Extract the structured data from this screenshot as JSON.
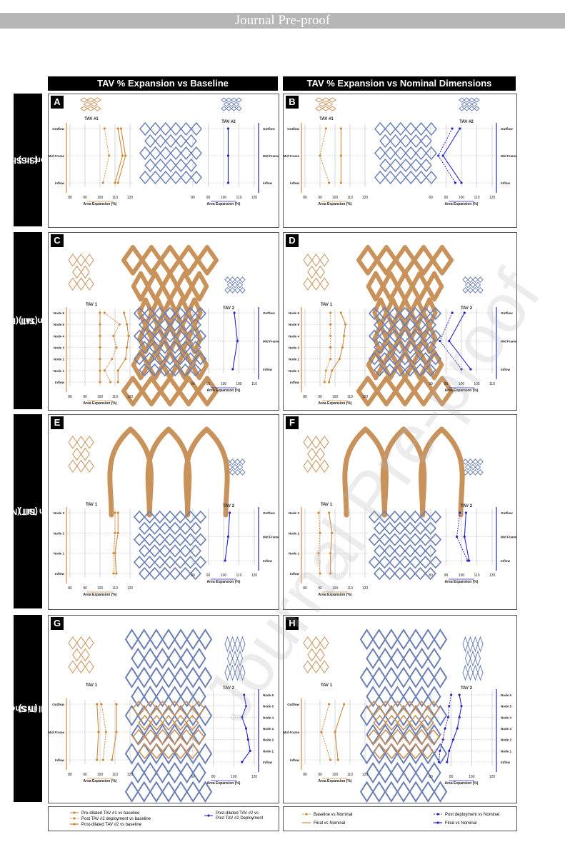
{
  "banner": "Journal Pre-proof",
  "column_headers": [
    "TAV % Expansion vs Baseline",
    "TAV % Expansion vs Nominal Dimensions"
  ],
  "row_headers": [
    {
      "line1": "Short in Short",
      "line2": "(SIS)"
    },
    {
      "line1": "Short in Tall (Evolut)",
      "line2": "(SIT)"
    },
    {
      "line1": "Short in Tall (Navitor)",
      "line2": "(SIT)"
    },
    {
      "line1": "Tall in Short",
      "line2": "(TiS)"
    }
  ],
  "watermark": "Journal Pre-proof",
  "colors": {
    "orange": "#d08a3c",
    "blue": "#2626c8",
    "frame_orange": "#c9925a",
    "frame_blue": "#6a7fb5"
  },
  "legends": {
    "baseline_left": [
      "Pre-dilated TAV #1 vs baseline",
      "Post TAV #2 deployment vs baseline",
      "Post-dilated TAV #2 vs baseline"
    ],
    "baseline_right": [
      "Post-dilated TAV #2 vs",
      "Post TAV #2 Deployment"
    ],
    "nominal_left": [
      "Baseline vs Nominal",
      "Final vs Nominal"
    ],
    "nominal_right": [
      "Post deployment vs Nominal",
      "Final vs Nominal"
    ]
  },
  "chart_data": [
    {
      "panel": "A",
      "type": "line",
      "left_title": "TAV #1",
      "right_title": "TAV #2",
      "left_levels": [
        "Outflow",
        "Mid Frame",
        "Inflow"
      ],
      "right_levels": [
        "Outflow",
        "Mid Frame",
        "Inflow"
      ],
      "left_ticks": [
        "120",
        "110",
        "100",
        "90",
        "80"
      ],
      "right_ticks": [
        "80",
        "90",
        "100",
        "110",
        "120"
      ],
      "left_series": [
        {
          "style": "solid",
          "values": [
            112,
            115,
            110
          ]
        },
        {
          "style": "dashed",
          "values": [
            103,
            106,
            102
          ]
        },
        {
          "style": "solid",
          "values": [
            114,
            117,
            112
          ]
        }
      ],
      "right_series": [
        {
          "style": "solid",
          "values": [
            103,
            103,
            103
          ]
        }
      ],
      "xlabel": "Area Expansion (%)",
      "xlim": [
        80,
        120
      ]
    },
    {
      "panel": "B",
      "type": "line",
      "left_title": "TAV #1",
      "right_title": "TAV #2",
      "left_levels": [
        "Outflow",
        "Mid Frame",
        "Inflow"
      ],
      "right_levels": [
        "Outflow",
        "Mid Frame",
        "Inflow"
      ],
      "left_ticks": [
        "120",
        "110",
        "100",
        "90",
        "80"
      ],
      "right_ticks": [
        "80",
        "90",
        "100",
        "110",
        "120"
      ],
      "left_series": [
        {
          "style": "solid",
          "values": [
            104,
            104,
            104
          ]
        },
        {
          "style": "dashed",
          "values": [
            94,
            90,
            96
          ]
        }
      ],
      "right_series": [
        {
          "style": "dashed",
          "values": [
            94,
            85,
            96
          ]
        },
        {
          "style": "solid",
          "values": [
            99,
            88,
            100
          ]
        }
      ],
      "xlabel": "Area Expansion (%)",
      "xlim": [
        80,
        120
      ]
    },
    {
      "panel": "C",
      "type": "line",
      "left_title": "TAV 1",
      "right_title": "TAV 2",
      "left_levels": [
        "Node 6",
        "Node 5",
        "Node 4",
        "Node 3",
        "Node 2",
        "Node 1",
        "Inflow"
      ],
      "right_levels": [
        "Outflow",
        "Mid Frame",
        "Inflow"
      ],
      "left_ticks": [
        "120",
        "110",
        "100",
        "90",
        "80"
      ],
      "right_ticks": [
        "90",
        "95",
        "100",
        "105",
        "110"
      ],
      "left_series": [
        {
          "style": "solid",
          "values": [
            116,
            118,
            119,
            118,
            117,
            112,
            112
          ]
        },
        {
          "style": "dashed",
          "values": [
            103,
            113,
            109,
            111,
            108,
            103,
            107
          ]
        },
        {
          "style": "solid",
          "values": [
            100,
            100,
            100,
            100,
            100,
            100,
            100
          ]
        }
      ],
      "right_series": [
        {
          "style": "solid",
          "values": [
            103.5,
            104.5,
            103
          ]
        }
      ],
      "xlabel": "Area Expansion (%)",
      "xlim": [
        80,
        120
      ]
    },
    {
      "panel": "D",
      "type": "line",
      "left_title": "TAV 1",
      "right_title": "TAV 2",
      "left_levels": [
        "Node 6",
        "Node 5",
        "Node 4",
        "Node 3",
        "Node 2",
        "Node 1",
        "Inflow"
      ],
      "right_levels": [
        "Outflow",
        "Mid Frame",
        "Inflow"
      ],
      "left_ticks": [
        "120",
        "110",
        "100",
        "90",
        "80"
      ],
      "right_ticks": [
        "90",
        "95",
        "100",
        "105",
        "110"
      ],
      "left_series": [
        {
          "style": "solid",
          "values": [
            104,
            107,
            106,
            105,
            103,
            98,
            96
          ]
        },
        {
          "style": "dashed",
          "values": [
            97,
            97,
            97,
            97,
            97,
            94,
            93
          ]
        }
      ],
      "right_series": [
        {
          "style": "dashed",
          "values": [
            97,
            93,
            100
          ]
        },
        {
          "style": "solid",
          "values": [
            101,
            96,
            103
          ]
        }
      ],
      "xlabel": "Area Expansion (%)",
      "xlim": [
        80,
        120
      ]
    },
    {
      "panel": "E",
      "type": "line",
      "left_title": "TAV 1",
      "right_title": "TAV 2",
      "left_levels": [
        "Node 3",
        "Node 2",
        "Node 1",
        "Inflow"
      ],
      "right_levels": [
        "Outflow",
        "Mid Frame",
        "Inflow"
      ],
      "left_ticks": [
        "120",
        "110",
        "100",
        "90",
        "80"
      ],
      "right_ticks": [
        "80",
        "90",
        "100",
        "110",
        "120"
      ],
      "left_series": [
        {
          "style": "solid",
          "values": [
            112,
            112,
            110,
            111
          ]
        },
        {
          "style": "dashed",
          "values": [
            110,
            110,
            109,
            109
          ]
        }
      ],
      "right_series": [
        {
          "style": "solid",
          "values": [
            104,
            103,
            101
          ]
        }
      ],
      "xlabel": "Area Expansion (%)",
      "xlim": [
        80,
        120
      ]
    },
    {
      "panel": "F",
      "type": "line",
      "left_title": "TAV 1",
      "right_title": "TAV 2",
      "left_levels": [
        "Node 3",
        "Node 2",
        "Node 1",
        "Inflow"
      ],
      "right_levels": [
        "Outflow",
        "Mid Frame",
        "Inflow"
      ],
      "left_ticks": [
        "120",
        "110",
        "100",
        "90",
        "80"
      ],
      "right_ticks": [
        "80",
        "90",
        "100",
        "110",
        "120"
      ],
      "left_series": [
        {
          "style": "solid",
          "values": [
            96,
            98,
            97,
            97
          ]
        },
        {
          "style": "dashed",
          "values": [
            89,
            90,
            89,
            90
          ]
        }
      ],
      "right_series": [
        {
          "style": "dashed",
          "values": [
            99,
            97,
            104
          ]
        },
        {
          "style": "solid",
          "values": [
            103,
            102,
            105
          ]
        }
      ],
      "xlabel": "Area Expansion (%)",
      "xlim": [
        80,
        120
      ]
    },
    {
      "panel": "G",
      "type": "line",
      "left_title": "TAV 1",
      "right_title": "TAV 2",
      "left_levels": [
        "Outflow",
        "Mid Frame",
        "Inflow"
      ],
      "right_levels": [
        "Node 6",
        "Node 5",
        "Node 4",
        "Node 3",
        "Node 2",
        "Node 1",
        "Inflow"
      ],
      "left_ticks": [
        "120",
        "110",
        "100",
        "90",
        "80"
      ],
      "right_ticks": [
        "60",
        "80",
        "100",
        "120"
      ],
      "left_series": [
        {
          "style": "solid",
          "values": [
            111,
            111,
            108
          ]
        },
        {
          "style": "dashed",
          "values": [
            101,
            104,
            102
          ]
        },
        {
          "style": "solid",
          "values": [
            98,
            99,
            98
          ]
        }
      ],
      "right_series": [
        {
          "style": "solid",
          "values": [
            110,
            112,
            108,
            112,
            114,
            116,
            108
          ]
        }
      ],
      "xlabel": "Area Expansion (%)",
      "xlim": [
        80,
        120
      ]
    },
    {
      "panel": "H",
      "type": "line",
      "left_title": "TAV 1",
      "right_title": "TAV 2",
      "left_levels": [
        "Outflow",
        "Mid Frame",
        "Inflow"
      ],
      "right_levels": [
        "Node 6",
        "Node 5",
        "Node 4",
        "Node 3",
        "Node 2",
        "Node 1",
        "Inflow"
      ],
      "left_ticks": [
        "120",
        "110",
        "100",
        "90",
        "80"
      ],
      "right_ticks": [
        "60",
        "80",
        "100",
        "120"
      ],
      "left_series": [
        {
          "style": "solid",
          "values": [
            106,
            100,
            102
          ]
        },
        {
          "style": "dashed",
          "values": [
            96,
            91,
            97
          ]
        }
      ],
      "right_series": [
        {
          "style": "dashed",
          "values": [
            80,
            78,
            77,
            74,
            72,
            69,
            68
          ]
        },
        {
          "style": "solid",
          "values": [
            88,
            90,
            88,
            86,
            82,
            78,
            76
          ]
        }
      ],
      "xlabel": "Area Expansion (%)",
      "xlim": [
        80,
        120
      ]
    }
  ]
}
